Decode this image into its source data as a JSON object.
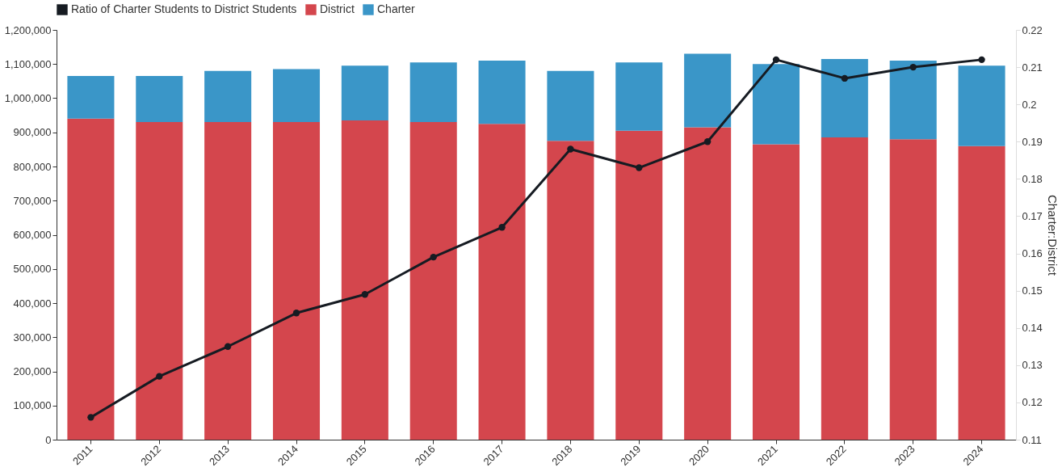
{
  "chart_data": {
    "type": "bar",
    "stacked": true,
    "categories": [
      "2011",
      "2012",
      "2013",
      "2014",
      "2015",
      "2016",
      "2017",
      "2018",
      "2019",
      "2020",
      "2021",
      "2022",
      "2023",
      "2024"
    ],
    "series": [
      {
        "name": "Ratio of Charter Students to District Students",
        "type": "line",
        "axis": "y2",
        "color": "#161b22",
        "values": [
          0.116,
          0.127,
          0.135,
          0.144,
          0.149,
          0.159,
          0.167,
          0.188,
          0.183,
          0.19,
          0.212,
          0.207,
          0.21,
          0.212
        ]
      },
      {
        "name": "District",
        "color": "#d4464d",
        "values": [
          940000,
          930000,
          930000,
          930000,
          935000,
          930000,
          925000,
          875000,
          905000,
          915000,
          865000,
          885000,
          880000,
          860000
        ]
      },
      {
        "name": "Charter",
        "color": "#3a96c8",
        "values": [
          125000,
          135000,
          150000,
          155000,
          160000,
          175000,
          185000,
          205000,
          200000,
          215000,
          235000,
          230000,
          230000,
          235000
        ]
      }
    ],
    "ylim": [
      0,
      1200000
    ],
    "yticks": [
      {
        "value": 0,
        "label": "0"
      },
      {
        "value": 100000,
        "label": "100,000"
      },
      {
        "value": 200000,
        "label": "200,000"
      },
      {
        "value": 300000,
        "label": "300,000"
      },
      {
        "value": 400000,
        "label": "400,000"
      },
      {
        "value": 500000,
        "label": "500,000"
      },
      {
        "value": 600000,
        "label": "600,000"
      },
      {
        "value": 700000,
        "label": "700,000"
      },
      {
        "value": 800000,
        "label": "800,000"
      },
      {
        "value": 900000,
        "label": "900,000"
      },
      {
        "value": 1000000,
        "label": "1,000,000"
      },
      {
        "value": 1100000,
        "label": "1,100,000"
      },
      {
        "value": 1200000,
        "label": "1,200,000"
      }
    ],
    "y2lim": [
      0.11,
      0.22
    ],
    "y2ticks": [
      0.11,
      0.12,
      0.13,
      0.14,
      0.15,
      0.16,
      0.17,
      0.18,
      0.19,
      0.2,
      0.21,
      0.22
    ],
    "y2label": "Charter:District",
    "legend": "top left",
    "marker": "circle",
    "line_style": "solid",
    "grid": false
  }
}
